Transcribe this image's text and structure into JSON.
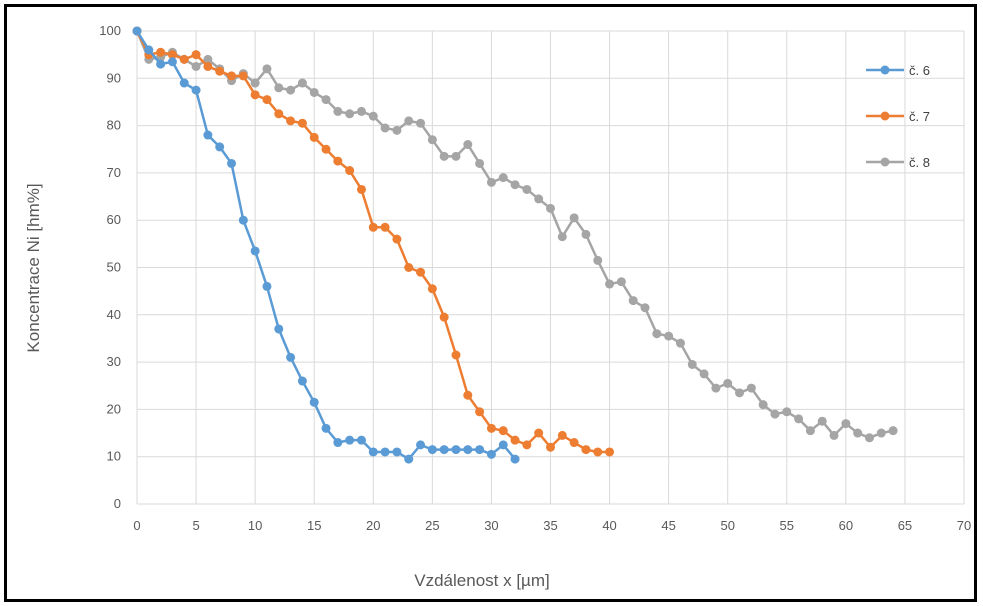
{
  "chart_data": {
    "type": "line",
    "title": "",
    "xlabel": "Vzdálenost x [µm]",
    "ylabel": "Koncentrace Ni [hm%]",
    "xlim": [
      0,
      70
    ],
    "ylim": [
      0,
      100
    ],
    "xticks": [
      0,
      5,
      10,
      15,
      20,
      25,
      30,
      35,
      40,
      45,
      50,
      55,
      60,
      65,
      70
    ],
    "yticks": [
      0,
      10,
      20,
      30,
      40,
      50,
      60,
      70,
      80,
      90,
      100
    ],
    "grid": true,
    "legend_position": "right",
    "series": [
      {
        "name": "č. 6",
        "color": "#5B9BD5",
        "x": [
          0,
          1,
          2,
          3,
          4,
          5,
          6,
          7,
          8,
          9,
          10,
          11,
          12,
          13,
          14,
          15,
          16,
          17,
          18,
          19,
          20,
          21,
          22,
          23,
          24,
          25,
          26,
          27,
          28,
          29,
          30,
          31,
          32
        ],
        "y": [
          100,
          96,
          93,
          93.5,
          89,
          87.5,
          78,
          75.5,
          72,
          60,
          53.5,
          46,
          37,
          31,
          26,
          21.5,
          16,
          13,
          13.5,
          13.5,
          11,
          11,
          11,
          9.5,
          12.5,
          11.5,
          11.5,
          11.5,
          11.5,
          11.5,
          10.5,
          12.5,
          9.5
        ]
      },
      {
        "name": "č. 7",
        "color": "#ED7D31",
        "x": [
          0,
          1,
          2,
          3,
          4,
          5,
          6,
          7,
          8,
          9,
          10,
          11,
          12,
          13,
          14,
          15,
          16,
          17,
          18,
          19,
          20,
          21,
          22,
          23,
          24,
          25,
          26,
          27,
          28,
          29,
          30,
          31,
          32,
          33,
          34,
          35,
          36,
          37,
          38,
          39,
          40
        ],
        "y": [
          100,
          95,
          95.5,
          95,
          94,
          95,
          92.5,
          91.5,
          90.5,
          90.5,
          86.5,
          85.5,
          82.5,
          81,
          80.5,
          77.5,
          75,
          72.5,
          70.5,
          66.5,
          58.5,
          58.5,
          56,
          50,
          49,
          45.5,
          39.5,
          31.5,
          23,
          19.5,
          16,
          15.5,
          13.5,
          12.5,
          15,
          12,
          14.5,
          13,
          11.5,
          11,
          11
        ]
      },
      {
        "name": "č. 8",
        "color": "#A5A5A5",
        "x": [
          0,
          1,
          2,
          3,
          4,
          5,
          6,
          7,
          8,
          9,
          10,
          11,
          12,
          13,
          14,
          15,
          16,
          17,
          18,
          19,
          20,
          21,
          22,
          23,
          24,
          25,
          26,
          27,
          28,
          29,
          30,
          31,
          32,
          33,
          34,
          35,
          36,
          37,
          38,
          39,
          40,
          41,
          42,
          43,
          44,
          45,
          46,
          47,
          48,
          49,
          50,
          51,
          52,
          53,
          54,
          55,
          56,
          57,
          58,
          59,
          60,
          61,
          62,
          63,
          64
        ],
        "y": [
          100,
          94,
          94.5,
          95.5,
          94,
          92.5,
          94,
          92,
          89.5,
          91,
          89,
          92,
          88,
          87.5,
          89,
          87,
          85.5,
          83,
          82.5,
          83,
          82,
          79.5,
          79,
          81,
          80.5,
          77,
          73.5,
          73.5,
          76,
          72,
          68,
          69,
          67.5,
          66.5,
          64.5,
          62.5,
          56.5,
          60.5,
          57,
          51.5,
          46.5,
          47,
          43,
          41.5,
          36,
          35.5,
          34,
          29.5,
          27.5,
          24.5,
          25.5,
          23.5,
          24.5,
          21,
          19,
          19.5,
          18,
          15.5,
          17.5,
          14.5,
          17,
          15,
          14,
          15,
          15.5
        ]
      }
    ]
  }
}
